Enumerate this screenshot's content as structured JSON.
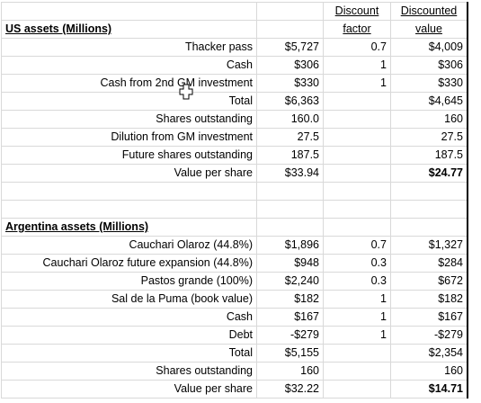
{
  "headers": {
    "discount_factor_line1": "Discount",
    "discount_factor_line2": "factor",
    "discounted_value_line1": "Discounted",
    "discounted_value_line2": "value"
  },
  "us": {
    "title": "US assets (Millions)",
    "rows": [
      {
        "label": "Thacker pass",
        "value": "$5,727",
        "factor": "0.7",
        "discounted": "$4,009"
      },
      {
        "label": "Cash",
        "value": "$306",
        "factor": "1",
        "discounted": "$306"
      },
      {
        "label": "Cash from 2nd GM investment",
        "value": "$330",
        "factor": "1",
        "discounted": "$330"
      },
      {
        "label": "Total",
        "value": "$6,363",
        "factor": "",
        "discounted": "$4,645"
      },
      {
        "label": "Shares outstanding",
        "value": "160.0",
        "factor": "",
        "discounted": "160"
      },
      {
        "label": "Dilution from GM investment",
        "value": "27.5",
        "factor": "",
        "discounted": "27.5"
      },
      {
        "label": "Future shares outstanding",
        "value": "187.5",
        "factor": "",
        "discounted": "187.5"
      },
      {
        "label": "Value per share",
        "value": "$33.94",
        "factor": "",
        "discounted": "$24.77"
      }
    ]
  },
  "argentina": {
    "title": "Argentina assets (Millions)",
    "rows": [
      {
        "label": "Cauchari Olaroz (44.8%)",
        "value": "$1,896",
        "factor": "0.7",
        "discounted": "$1,327"
      },
      {
        "label": "Cauchari Olaroz future expansion (44.8%)",
        "value": "$948",
        "factor": "0.3",
        "discounted": "$284"
      },
      {
        "label": "Pastos grande (100%)",
        "value": "$2,240",
        "factor": "0.3",
        "discounted": "$672"
      },
      {
        "label": "Sal de la Puma (book value)",
        "value": "$182",
        "factor": "1",
        "discounted": "$182"
      },
      {
        "label": "Cash",
        "value": "$167",
        "factor": "1",
        "discounted": "$167"
      },
      {
        "label": "Debt",
        "value": "-$279",
        "factor": "1",
        "discounted": "-$279"
      },
      {
        "label": "Total",
        "value": "$5,155",
        "factor": "",
        "discounted": "$2,354"
      },
      {
        "label": "Shares outstanding",
        "value": "160",
        "factor": "",
        "discounted": "160"
      },
      {
        "label": "Value per share",
        "value": "$32.22",
        "factor": "",
        "discounted": "$14.71"
      }
    ]
  }
}
